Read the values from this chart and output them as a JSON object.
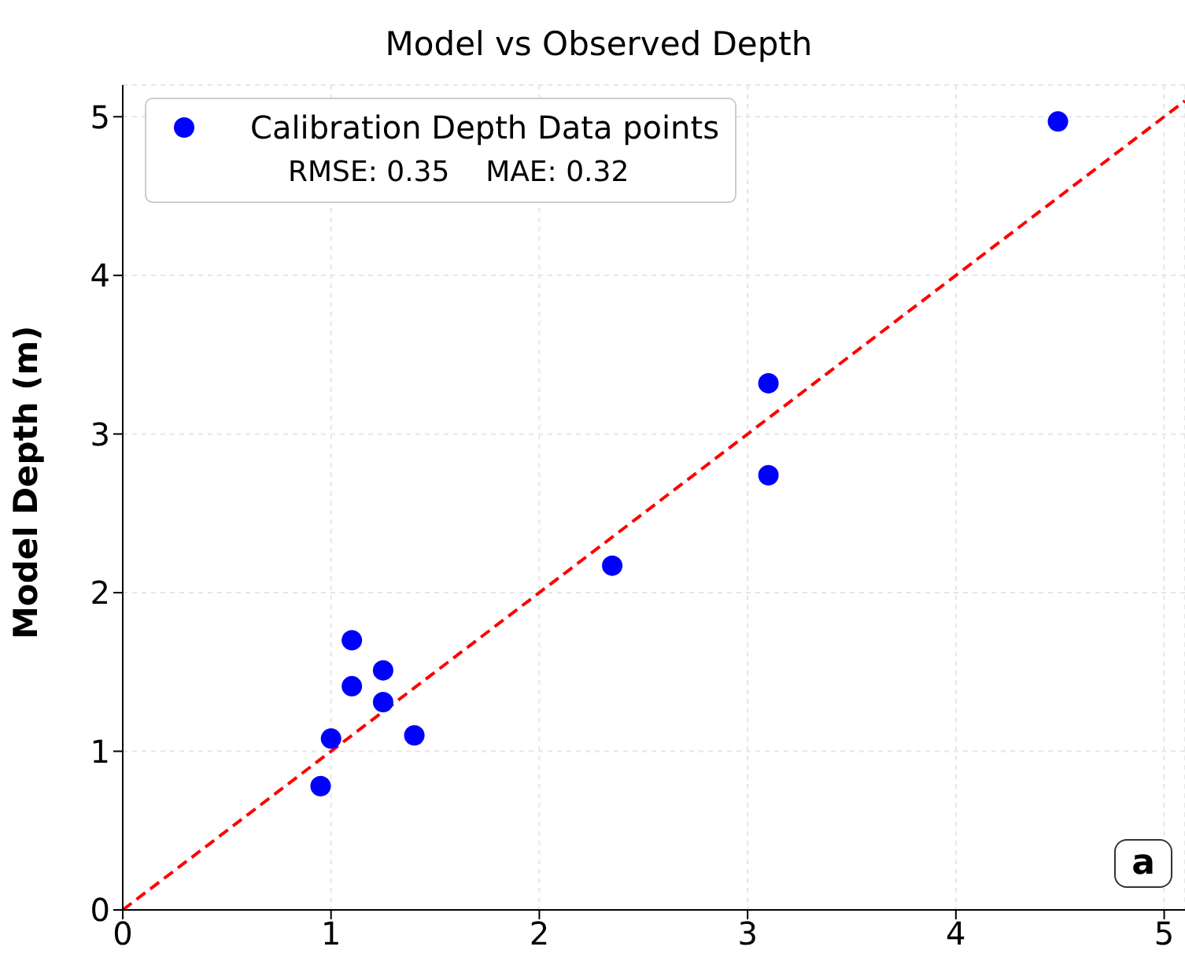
{
  "chart_data": {
    "type": "scatter",
    "title": "Model vs Observed Depth",
    "ylabel": "Model Depth (m)",
    "series": [
      {
        "name": "Calibration Depth Data points",
        "marker": "circle",
        "color": "#0000ff",
        "x": [
          0.95,
          1.0,
          1.1,
          1.1,
          1.25,
          1.25,
          1.4,
          2.35,
          3.1,
          3.1,
          4.49
        ],
        "values": [
          0.78,
          1.08,
          1.7,
          1.41,
          1.51,
          1.31,
          1.1,
          2.17,
          3.32,
          2.74,
          4.97
        ]
      },
      {
        "type": "line",
        "color": "#ff0000",
        "line_style": "dashed",
        "x": [
          0,
          5.1
        ],
        "values": [
          0,
          5.1
        ]
      }
    ],
    "xlim": [
      0,
      5.1
    ],
    "xticks": [
      0,
      1,
      2,
      3,
      4,
      5
    ],
    "ylim": [
      0,
      5.2
    ],
    "yticks": [
      0,
      1,
      2,
      3,
      4,
      5
    ],
    "grid": true,
    "legend": "top left",
    "annotations": [
      "RMSE: 0.35    MAE: 0.32",
      "a"
    ]
  }
}
